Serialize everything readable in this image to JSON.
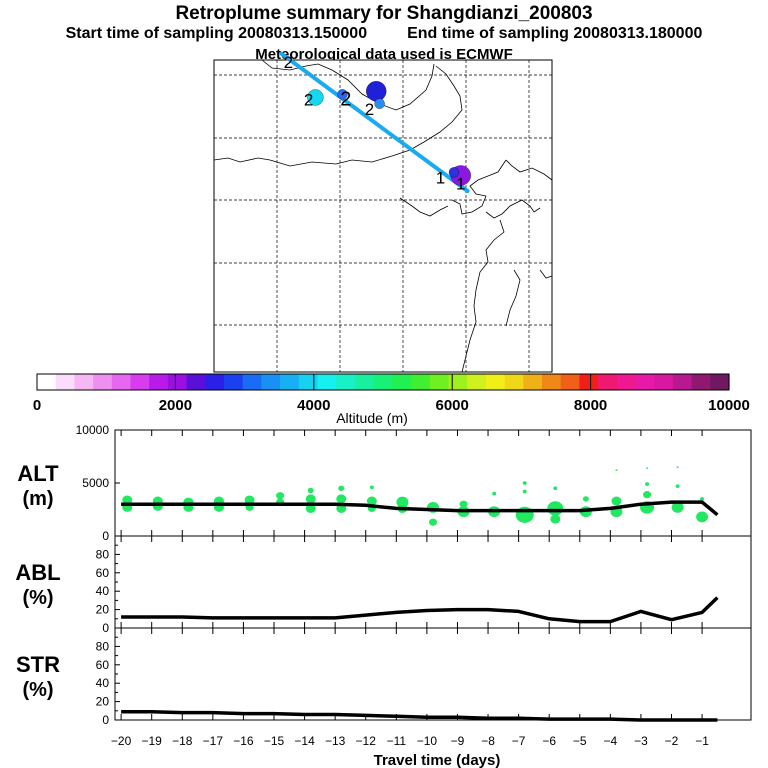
{
  "header": {
    "title": "Retroplume summary for Shangdianzi_200803",
    "start_sampling": "Start time of sampling 20080313.150000",
    "end_sampling": "End time of sampling 20080313.180000",
    "met_data": "Meteorological data used is ECMWF"
  },
  "map": {
    "trajectory_color": "#1aaaf0",
    "markers": [
      {
        "label": "2",
        "lon_frac": 0.22,
        "lat_frac": 0.0
      },
      {
        "label": "2",
        "lon_frac": 0.28,
        "lat_frac": 0.12
      },
      {
        "label": "2",
        "lon_frac": 0.39,
        "lat_frac": 0.12
      },
      {
        "label": "2",
        "lon_frac": 0.46,
        "lat_frac": 0.15
      },
      {
        "label": "1",
        "lon_frac": 0.67,
        "lat_frac": 0.37
      },
      {
        "label": "1",
        "lon_frac": 0.73,
        "lat_frac": 0.39
      }
    ],
    "clusters": [
      {
        "lon_frac": 0.3,
        "lat_frac": 0.12,
        "altitude_m": 3800,
        "color": "#18d8f0",
        "size": "medium"
      },
      {
        "lon_frac": 0.38,
        "lat_frac": 0.11,
        "altitude_m": 3300,
        "color": "#2d6af0",
        "size": "small"
      },
      {
        "lon_frac": 0.48,
        "lat_frac": 0.1,
        "altitude_m": 2500,
        "color": "#2020d8",
        "size": "large"
      },
      {
        "lon_frac": 0.49,
        "lat_frac": 0.14,
        "altitude_m": 3000,
        "color": "#2a8cf5",
        "size": "small"
      },
      {
        "lon_frac": 0.73,
        "lat_frac": 0.37,
        "altitude_m": 2000,
        "color": "#8a18e0",
        "size": "large"
      },
      {
        "lon_frac": 0.71,
        "lat_frac": 0.36,
        "altitude_m": 2200,
        "color": "#3030e0",
        "size": "small"
      }
    ]
  },
  "colorbar": {
    "label": "Altitude (m)",
    "min": 0,
    "max": 10000,
    "tick_labels": [
      "0",
      "2000",
      "4000",
      "6000",
      "8000",
      "10000"
    ],
    "colors": [
      "#ffffff",
      "#fbdcfb",
      "#f5b8f5",
      "#ee90f0",
      "#e668f0",
      "#d83cf0",
      "#b81ae8",
      "#9a10e0",
      "#5a10d8",
      "#2a20e8",
      "#1a40f0",
      "#1a6cf5",
      "#1a90f5",
      "#18b0f5",
      "#18d0f0",
      "#18f0f0",
      "#18f0c8",
      "#18f0a0",
      "#18f078",
      "#20f050",
      "#40f030",
      "#70f020",
      "#a0f020",
      "#d0f020",
      "#f0f018",
      "#f0d818",
      "#f0b018",
      "#f08818",
      "#f06018",
      "#f02018",
      "#f01870",
      "#f01890",
      "#e818a8",
      "#d818a0",
      "#b81890",
      "#901870",
      "#701860"
    ]
  },
  "chart_data": [
    {
      "type": "line",
      "name": "ALT",
      "ylabel": "ALT\n(m)",
      "ylabel_top": "ALT",
      "ylabel_unit": "(m)",
      "ylim": [
        0,
        10000
      ],
      "ytick_labels": [
        "10000",
        "5000",
        "0"
      ],
      "yticks": [
        10000,
        5000,
        0
      ],
      "x": [
        -20,
        -19,
        -18,
        -17,
        -16,
        -15,
        -14,
        -13,
        -12,
        -11,
        -10,
        -9,
        -8,
        -7,
        -6,
        -5,
        -4,
        -3,
        -2,
        -1,
        -0.5
      ],
      "values": [
        3000,
        3000,
        3000,
        3000,
        3000,
        3000,
        3000,
        3000,
        2900,
        2600,
        2500,
        2400,
        2400,
        2400,
        2400,
        2400,
        2600,
        3000,
        3200,
        3200,
        2000
      ],
      "scatter_color": "#20e860",
      "scatter": [
        {
          "x": -19.8,
          "y": 3400,
          "s": 5
        },
        {
          "x": -19.8,
          "y": 2700,
          "s": 5
        },
        {
          "x": -18.8,
          "y": 3300,
          "s": 5
        },
        {
          "x": -18.8,
          "y": 2800,
          "s": 5
        },
        {
          "x": -17.8,
          "y": 3200,
          "s": 5
        },
        {
          "x": -17.8,
          "y": 2700,
          "s": 5
        },
        {
          "x": -16.8,
          "y": 3300,
          "s": 5
        },
        {
          "x": -16.8,
          "y": 2700,
          "s": 5
        },
        {
          "x": -15.8,
          "y": 3400,
          "s": 5
        },
        {
          "x": -15.8,
          "y": 2700,
          "s": 4
        },
        {
          "x": -14.8,
          "y": 3800,
          "s": 4
        },
        {
          "x": -14.8,
          "y": 3200,
          "s": 4
        },
        {
          "x": -13.8,
          "y": 4300,
          "s": 3
        },
        {
          "x": -13.8,
          "y": 3500,
          "s": 5
        },
        {
          "x": -13.8,
          "y": 2600,
          "s": 5
        },
        {
          "x": -12.8,
          "y": 4500,
          "s": 3
        },
        {
          "x": -12.8,
          "y": 3500,
          "s": 5
        },
        {
          "x": -12.8,
          "y": 2600,
          "s": 5
        },
        {
          "x": -11.8,
          "y": 4600,
          "s": 2
        },
        {
          "x": -11.8,
          "y": 3300,
          "s": 5
        },
        {
          "x": -11.8,
          "y": 2600,
          "s": 4
        },
        {
          "x": -10.8,
          "y": 3200,
          "s": 6
        },
        {
          "x": -10.8,
          "y": 2600,
          "s": 5
        },
        {
          "x": -9.8,
          "y": 2700,
          "s": 6
        },
        {
          "x": -9.8,
          "y": 1300,
          "s": 4
        },
        {
          "x": -8.8,
          "y": 2300,
          "s": 6
        },
        {
          "x": -8.8,
          "y": 3000,
          "s": 4
        },
        {
          "x": -7.8,
          "y": 4000,
          "s": 2
        },
        {
          "x": -7.8,
          "y": 2300,
          "s": 6
        },
        {
          "x": -6.8,
          "y": 5000,
          "s": 2
        },
        {
          "x": -6.8,
          "y": 4200,
          "s": 2
        },
        {
          "x": -6.8,
          "y": 2000,
          "s": 9
        },
        {
          "x": -5.8,
          "y": 4500,
          "s": 2
        },
        {
          "x": -5.8,
          "y": 2600,
          "s": 8
        },
        {
          "x": -5.8,
          "y": 1600,
          "s": 5
        },
        {
          "x": -4.8,
          "y": 3500,
          "s": 3
        },
        {
          "x": -4.8,
          "y": 2300,
          "s": 6
        },
        {
          "x": -3.8,
          "y": 6200,
          "s": 1
        },
        {
          "x": -3.8,
          "y": 3300,
          "s": 5
        },
        {
          "x": -3.8,
          "y": 2300,
          "s": 6
        },
        {
          "x": -2.8,
          "y": 6400,
          "s": 1
        },
        {
          "x": -2.8,
          "y": 4900,
          "s": 2
        },
        {
          "x": -2.8,
          "y": 3900,
          "s": 4
        },
        {
          "x": -2.8,
          "y": 2700,
          "s": 7
        },
        {
          "x": -1.8,
          "y": 6500,
          "s": 1
        },
        {
          "x": -1.8,
          "y": 4700,
          "s": 2
        },
        {
          "x": -1.8,
          "y": 2700,
          "s": 6
        },
        {
          "x": -1.0,
          "y": 3500,
          "s": 2
        },
        {
          "x": -1.0,
          "y": 1800,
          "s": 6
        }
      ]
    },
    {
      "type": "line",
      "name": "ABL",
      "ylabel_top": "ABL",
      "ylabel_unit": "(%)",
      "ylim": [
        0,
        100
      ],
      "ytick_labels": [
        "80",
        "60",
        "40",
        "20",
        "0"
      ],
      "yticks": [
        80,
        60,
        40,
        20,
        0
      ],
      "x": [
        -20,
        -19,
        -18,
        -17,
        -16,
        -15,
        -14,
        -13,
        -12,
        -11,
        -10,
        -9,
        -8,
        -7,
        -6,
        -5,
        -4,
        -3,
        -2,
        -1,
        -0.5
      ],
      "values": [
        12,
        12,
        12,
        11,
        11,
        11,
        11,
        11,
        14,
        17,
        19,
        20,
        20,
        18,
        10,
        7,
        7,
        18,
        9,
        17,
        33
      ]
    },
    {
      "type": "line",
      "name": "STR",
      "ylabel_top": "STR",
      "ylabel_unit": "(%)",
      "ylim": [
        0,
        100
      ],
      "ytick_labels": [
        "80",
        "60",
        "40",
        "20",
        "0"
      ],
      "yticks": [
        80,
        60,
        40,
        20,
        0
      ],
      "x": [
        -20,
        -19,
        -18,
        -17,
        -16,
        -15,
        -14,
        -13,
        -12,
        -11,
        -10,
        -9,
        -8,
        -7,
        -6,
        -5,
        -4,
        -3,
        -2,
        -1,
        -0.5
      ],
      "values": [
        9,
        9,
        8,
        8,
        7,
        7,
        6,
        6,
        5,
        4,
        3,
        3,
        2,
        2,
        1,
        1,
        1,
        0,
        0,
        0,
        0
      ]
    }
  ],
  "xaxis": {
    "label": "Travel time (days)",
    "ticks": [
      -20,
      -19,
      -18,
      -17,
      -16,
      -15,
      -14,
      -13,
      -12,
      -11,
      -10,
      -9,
      -8,
      -7,
      -6,
      -5,
      -4,
      -3,
      -2,
      -1
    ],
    "tick_labels": [
      "−20",
      "−19",
      "−18",
      "−17",
      "−16",
      "−15",
      "−14",
      "−13",
      "−12",
      "−11",
      "−10",
      "−9",
      "−8",
      "−7",
      "−6",
      "−5",
      "−4",
      "−3",
      "−2",
      "−1"
    ],
    "range": [
      -20.2,
      0.6
    ]
  }
}
